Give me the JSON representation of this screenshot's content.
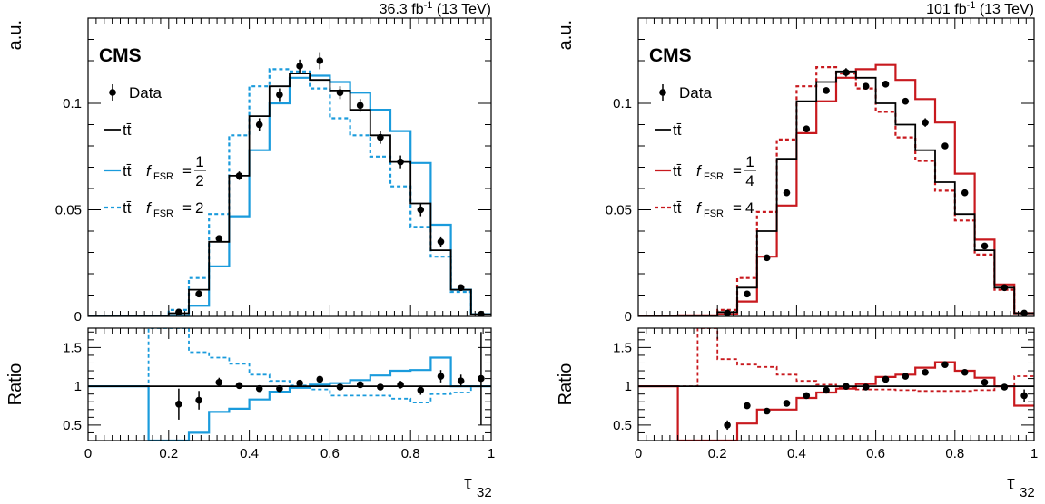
{
  "chart_data": [
    {
      "type": "histogram",
      "experiment_label": "CMS",
      "lumi_label": "36.3 fb",
      "lumi_sup": "-1",
      "energy_label": " (13 TeV)",
      "ylabel": "a.u.",
      "ratio_ylabel": "Ratio",
      "xlabel": "τ",
      "xlabel_sub": "32",
      "xlim": [
        0,
        1
      ],
      "ylim": [
        0,
        0.14
      ],
      "ratio_ylim": [
        0.3,
        1.75
      ],
      "x_ticks": [
        "0",
        "0.2",
        "0.4",
        "0.6",
        "0.8",
        "1"
      ],
      "y_ticks": [
        "0",
        "0.05",
        "0.1"
      ],
      "ratio_ticks": [
        "0.5",
        "1",
        "1.5"
      ],
      "bin_edges": [
        0.0,
        0.05,
        0.1,
        0.15,
        0.2,
        0.25,
        0.3,
        0.35,
        0.4,
        0.45,
        0.5,
        0.55,
        0.6,
        0.65,
        0.7,
        0.75,
        0.8,
        0.85,
        0.9,
        0.95,
        1.0
      ],
      "legend": {
        "data": "Data",
        "nominal": "tt̄",
        "up": {
          "prefix": "tt̄",
          "f": "f",
          "sub": "FSR",
          "eq": "=",
          "num": "1",
          "den": "2"
        },
        "down": {
          "prefix": "tt̄",
          "f": "f",
          "sub": "FSR",
          "eq": "=",
          "value": "2"
        }
      },
      "colors": {
        "variation": "#1a9bdc",
        "nominal": "#000000",
        "data": "#000000"
      },
      "series": [
        {
          "name": "Data",
          "style": "points",
          "x": [
            0.225,
            0.275,
            0.325,
            0.375,
            0.425,
            0.475,
            0.525,
            0.575,
            0.625,
            0.675,
            0.725,
            0.775,
            0.825,
            0.875,
            0.925,
            0.975
          ],
          "y": [
            0.002,
            0.0105,
            0.0365,
            0.066,
            0.09,
            0.104,
            0.1175,
            0.12,
            0.105,
            0.099,
            0.084,
            0.0725,
            0.05,
            0.035,
            0.0135,
            0.001
          ],
          "yerr": [
            0.001,
            0.0015,
            0.0015,
            0.002,
            0.003,
            0.003,
            0.003,
            0.004,
            0.003,
            0.003,
            0.003,
            0.003,
            0.003,
            0.0025,
            0.001,
            0.0005
          ]
        },
        {
          "name": "tt̄",
          "style": "step-solid",
          "color": "#000000",
          "values": [
            0,
            0,
            0,
            0,
            0.0015,
            0.0125,
            0.035,
            0.066,
            0.094,
            0.108,
            0.114,
            0.111,
            0.106,
            0.097,
            0.085,
            0.0725,
            0.053,
            0.031,
            0.0125,
            0.001
          ]
        },
        {
          "name": "tt̄ fFSR = 1/2",
          "style": "step-solid",
          "color": "#1a9bdc",
          "values": [
            0,
            0,
            0,
            0,
            0.0005,
            0.005,
            0.0235,
            0.047,
            0.078,
            0.1,
            0.112,
            0.113,
            0.11,
            0.105,
            0.097,
            0.087,
            0.072,
            0.043,
            0.0125,
            0.001
          ]
        },
        {
          "name": "tt̄ fFSR = 2",
          "style": "step-dashed",
          "color": "#1a9bdc",
          "values": [
            0,
            0,
            0,
            0,
            0.003,
            0.018,
            0.048,
            0.085,
            0.108,
            0.116,
            0.115,
            0.107,
            0.093,
            0.085,
            0.075,
            0.061,
            0.042,
            0.028,
            0.0115,
            0.001
          ]
        }
      ],
      "ratio": {
        "data_y": [
          0.77,
          0.82,
          1.05,
          1.01,
          0.97,
          0.97,
          1.04,
          1.09,
          0.99,
          1.02,
          0.99,
          1.02,
          0.95,
          1.13,
          1.07,
          1.1
        ],
        "data_yerr": [
          0.2,
          0.12,
          0.06,
          0.04,
          0.04,
          0.03,
          0.03,
          0.03,
          0.03,
          0.04,
          0.04,
          0.05,
          0.06,
          0.08,
          0.08,
          0.6
        ],
        "up_values": [
          1.0,
          1.0,
          1.0,
          0.0,
          0.3,
          0.4,
          0.67,
          0.71,
          0.83,
          0.93,
          0.98,
          1.02,
          1.04,
          1.08,
          1.14,
          1.2,
          1.21,
          1.37,
          1.0,
          1.0
        ],
        "down_values": [
          1.0,
          1.0,
          1.0,
          1.8,
          2.0,
          1.44,
          1.37,
          1.29,
          1.15,
          1.07,
          1.01,
          0.96,
          0.88,
          0.88,
          0.88,
          0.84,
          0.79,
          0.9,
          0.92,
          1.0
        ]
      }
    },
    {
      "type": "histogram",
      "experiment_label": "CMS",
      "lumi_label": "101 fb",
      "lumi_sup": "-1",
      "energy_label": " (13 TeV)",
      "ylabel": "a.u.",
      "ratio_ylabel": "Ratio",
      "xlabel": "τ",
      "xlabel_sub": "32",
      "xlim": [
        0,
        1
      ],
      "ylim": [
        0,
        0.14
      ],
      "ratio_ylim": [
        0.3,
        1.75
      ],
      "x_ticks": [
        "0",
        "0.2",
        "0.4",
        "0.6",
        "0.8",
        "1"
      ],
      "y_ticks": [
        "0",
        "0.05",
        "0.1"
      ],
      "ratio_ticks": [
        "0.5",
        "1",
        "1.5"
      ],
      "bin_edges": [
        0.0,
        0.05,
        0.1,
        0.15,
        0.2,
        0.25,
        0.3,
        0.35,
        0.4,
        0.45,
        0.5,
        0.55,
        0.6,
        0.65,
        0.7,
        0.75,
        0.8,
        0.85,
        0.9,
        0.95,
        1.0
      ],
      "legend": {
        "data": "Data",
        "nominal": "tt̄",
        "up": {
          "prefix": "tt̄",
          "f": "f",
          "sub": "FSR",
          "eq": "=",
          "num": "1",
          "den": "4"
        },
        "down": {
          "prefix": "tt̄",
          "f": "f",
          "sub": "FSR",
          "eq": "=",
          "value": "4"
        }
      },
      "colors": {
        "variation": "#c8191e",
        "nominal": "#000000",
        "data": "#000000"
      },
      "series": [
        {
          "name": "Data",
          "style": "points",
          "x": [
            0.225,
            0.275,
            0.325,
            0.375,
            0.425,
            0.475,
            0.525,
            0.575,
            0.625,
            0.675,
            0.725,
            0.775,
            0.825,
            0.875,
            0.925,
            0.975
          ],
          "y": [
            0.0015,
            0.0105,
            0.0275,
            0.058,
            0.088,
            0.106,
            0.1145,
            0.108,
            0.109,
            0.101,
            0.091,
            0.08,
            0.058,
            0.033,
            0.0135,
            0.0015
          ],
          "yerr": [
            0.0008,
            0.001,
            0.001,
            0.0015,
            0.0015,
            0.0015,
            0.002,
            0.0015,
            0.0015,
            0.0015,
            0.002,
            0.0015,
            0.0015,
            0.001,
            0.001,
            0.0005
          ]
        },
        {
          "name": "tt̄",
          "style": "step-solid",
          "color": "#000000",
          "values": [
            0,
            0,
            0,
            0,
            0.002,
            0.0135,
            0.04,
            0.074,
            0.101,
            0.11,
            0.115,
            0.112,
            0.1,
            0.09,
            0.078,
            0.063,
            0.048,
            0.031,
            0.0135,
            0.0015
          ]
        },
        {
          "name": "tt̄ fFSR = 1/4",
          "style": "step-solid",
          "color": "#c8191e",
          "values": [
            0,
            0,
            0.0005,
            0.0005,
            0.001,
            0.007,
            0.028,
            0.052,
            0.086,
            0.101,
            0.112,
            0.116,
            0.118,
            0.111,
            0.102,
            0.091,
            0.067,
            0.036,
            0.015,
            0.0015
          ]
        },
        {
          "name": "tt̄ fFSR = 4",
          "style": "step-dashed",
          "color": "#c8191e",
          "values": [
            0,
            0,
            0,
            0,
            0.003,
            0.018,
            0.049,
            0.083,
            0.108,
            0.117,
            0.114,
            0.107,
            0.096,
            0.084,
            0.073,
            0.059,
            0.045,
            0.029,
            0.0125,
            0.0015
          ]
        }
      ],
      "ratio": {
        "data_y": [
          0.5,
          0.75,
          0.68,
          0.78,
          0.88,
          0.95,
          1.0,
          0.99,
          1.09,
          1.13,
          1.18,
          1.28,
          1.18,
          1.05,
          0.99,
          0.88
        ],
        "data_yerr": [
          0.06,
          0.02,
          0.02,
          0.02,
          0.02,
          0.02,
          0.02,
          0.02,
          0.02,
          0.02,
          0.02,
          0.02,
          0.02,
          0.02,
          0.02,
          0.08
        ],
        "up_values": [
          1.0,
          1.0,
          0.0,
          0.0,
          0.2,
          0.52,
          0.7,
          0.7,
          0.85,
          0.92,
          0.97,
          1.03,
          1.12,
          1.15,
          1.24,
          1.31,
          1.2,
          1.11,
          1.0,
          0.75
        ],
        "down_values": [
          1.0,
          1.0,
          1.0,
          2.0,
          1.35,
          1.28,
          1.25,
          1.15,
          1.07,
          1.02,
          0.99,
          0.96,
          0.96,
          0.95,
          0.94,
          0.94,
          0.94,
          0.95,
          1.0,
          1.13
        ]
      }
    }
  ]
}
